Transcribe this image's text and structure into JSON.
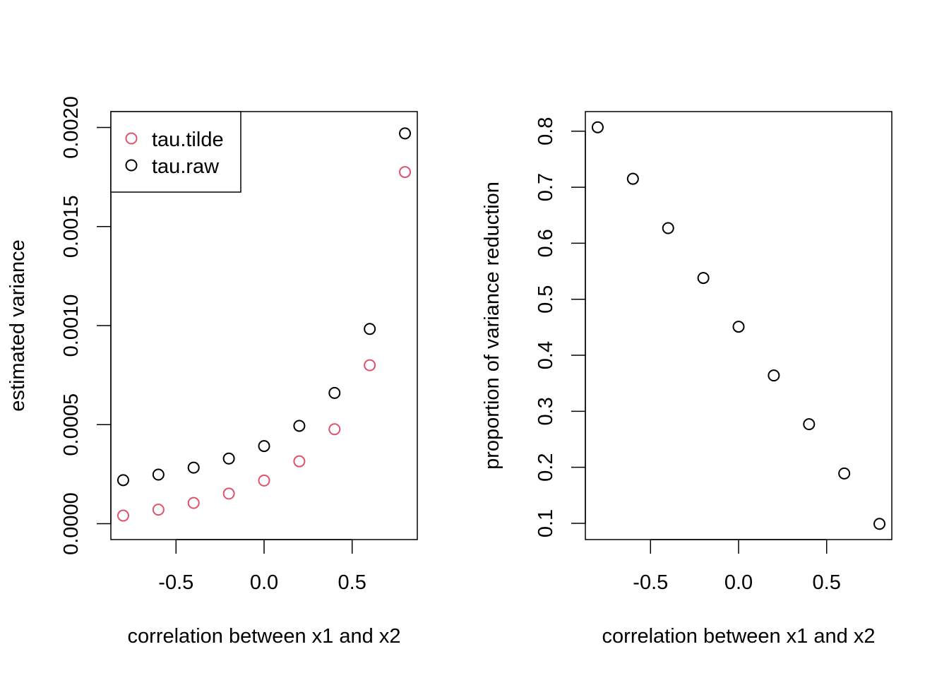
{
  "chart_data": [
    {
      "type": "scatter",
      "xlabel": "correlation between x1 and x2",
      "ylabel": "estimated variance",
      "xlim": [
        -0.87,
        0.87
      ],
      "ylim": [
        -8e-05,
        0.00208
      ],
      "xticks": [
        -0.5,
        0.0,
        0.5
      ],
      "xtick_labels": [
        "-0.5",
        "0.0",
        "0.5"
      ],
      "yticks": [
        0.0,
        0.0005,
        0.001,
        0.0015,
        0.002
      ],
      "ytick_labels": [
        "0.0000",
        "0.0005",
        "0.0010",
        "0.0015",
        "0.0020"
      ],
      "grid": false,
      "legend": {
        "position": "top-left",
        "entries": [
          "tau.tilde",
          "tau.raw"
        ]
      },
      "x": [
        -0.8,
        -0.6,
        -0.4,
        -0.2,
        0.0,
        0.2,
        0.4,
        0.6,
        0.8
      ],
      "series": [
        {
          "name": "tau.tilde",
          "color": "#DF536B",
          "values": [
            4.1e-05,
            7.1e-05,
            0.000105,
            0.000152,
            0.000218,
            0.000315,
            0.000477,
            0.0008,
            0.001775
          ]
        },
        {
          "name": "tau.raw",
          "color": "#000000",
          "values": [
            0.00022,
            0.000248,
            0.000283,
            0.000329,
            0.000392,
            0.000494,
            0.00066,
            0.000983,
            0.00197
          ]
        }
      ]
    },
    {
      "type": "scatter",
      "xlabel": "correlation between x1 and x2",
      "ylabel": "proportion of variance reduction",
      "xlim": [
        -0.87,
        0.87
      ],
      "ylim": [
        0.071,
        0.835
      ],
      "xticks": [
        -0.5,
        0.0,
        0.5
      ],
      "xtick_labels": [
        "-0.5",
        "0.0",
        "0.5"
      ],
      "yticks": [
        0.1,
        0.2,
        0.3,
        0.4,
        0.5,
        0.6,
        0.7,
        0.8
      ],
      "ytick_labels": [
        "0.1",
        "0.2",
        "0.3",
        "0.4",
        "0.5",
        "0.6",
        "0.7",
        "0.8"
      ],
      "grid": false,
      "x": [
        -0.8,
        -0.6,
        -0.4,
        -0.2,
        0.0,
        0.2,
        0.4,
        0.6,
        0.8
      ],
      "series": [
        {
          "color": "#000000",
          "values": [
            0.807,
            0.715,
            0.627,
            0.538,
            0.451,
            0.364,
            0.277,
            0.189,
            0.099
          ]
        }
      ]
    }
  ]
}
